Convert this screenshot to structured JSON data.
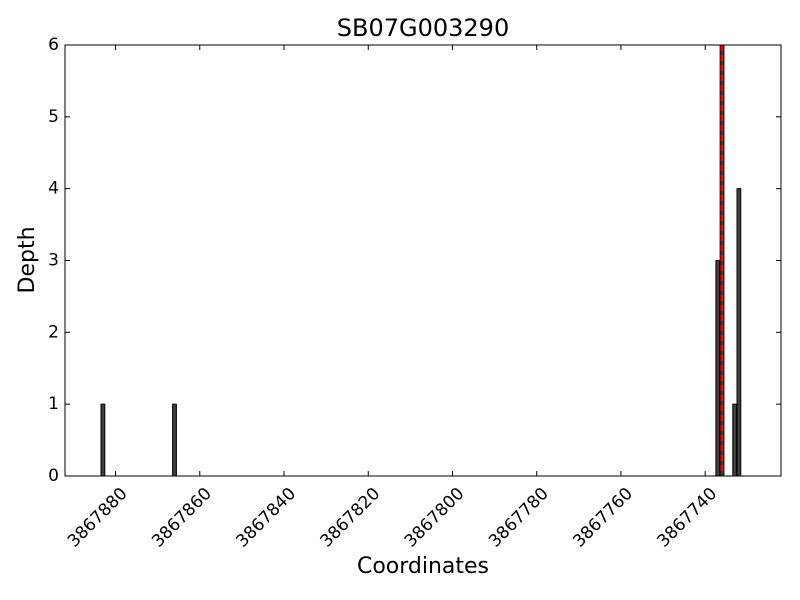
{
  "chart_data": {
    "type": "bar",
    "title": "SB07G003290",
    "xlabel": "Coordinates",
    "ylabel": "Depth",
    "x": [
      3867883,
      3867866,
      3867737,
      3867736,
      3867733,
      3867732
    ],
    "values": [
      1,
      1,
      3,
      6,
      1,
      4
    ],
    "color": "#3f3f3f",
    "xlim": [
      3867892,
      3867722
    ],
    "ylim": [
      0,
      6
    ],
    "xticks": [
      3867880,
      3867860,
      3867840,
      3867820,
      3867800,
      3867780,
      3867760,
      3867740
    ],
    "yticks": [
      0,
      1,
      2,
      3,
      4,
      5,
      6
    ],
    "marker_x": 3867736,
    "marker_color": "#ff0000",
    "grid": false
  }
}
